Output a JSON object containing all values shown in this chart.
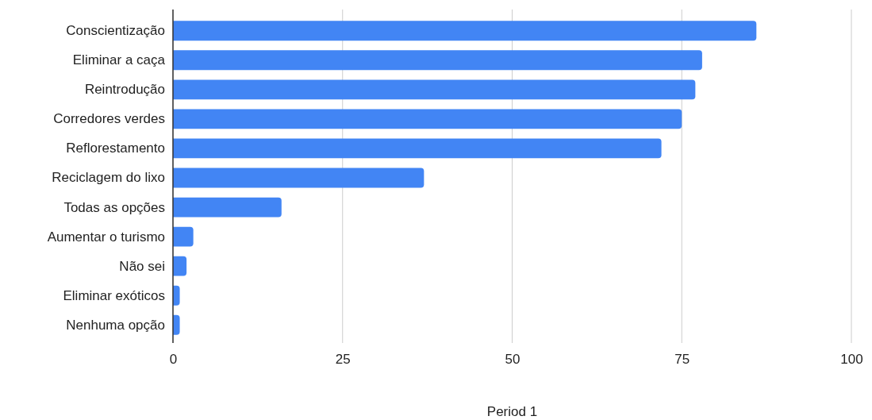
{
  "chart_data": {
    "type": "bar",
    "orientation": "horizontal",
    "xlabel": "Period 1",
    "categories": [
      "Conscientização",
      "Eliminar a caça",
      "Reintrodução",
      "Corredores verdes",
      "Reflorestamento",
      "Reciclagem do lixo",
      "Todas as opções",
      "Aumentar o turismo",
      "Não sei",
      "Eliminar exóticos",
      "Nenhuma opção"
    ],
    "values": [
      86,
      78,
      77,
      75,
      72,
      37,
      16,
      3,
      2,
      1,
      1
    ],
    "color": "#4285f4",
    "xlim": [
      0,
      100
    ],
    "xticks": [
      0,
      25,
      50,
      75,
      100
    ],
    "grid": "x"
  }
}
